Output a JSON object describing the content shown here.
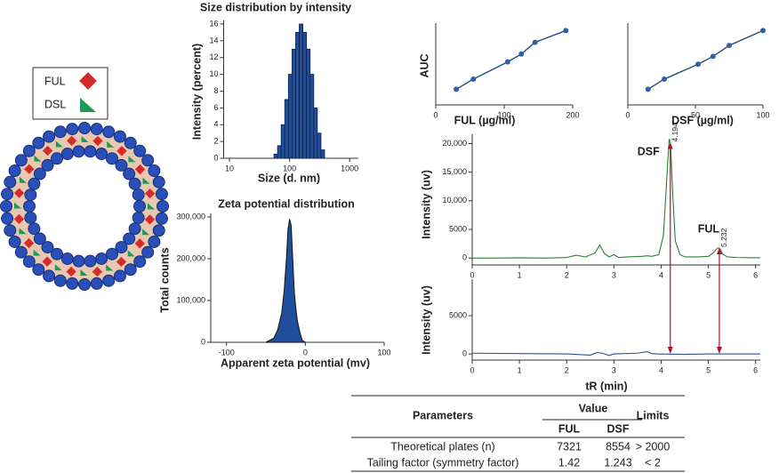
{
  "diagram": {
    "legend": [
      "FUL",
      "DSL"
    ]
  },
  "chart_data": [
    {
      "type": "histogram",
      "title": "Size distribution by intensity",
      "xlabel": "Size (d. nm)",
      "ylabel": "Intensity (percent)",
      "xscale": "log",
      "bins": [
        55,
        63.2,
        72.6,
        83.4,
        95.8,
        110,
        126.4,
        145.2,
        166.8,
        191.6,
        220,
        252.8,
        290.4,
        333.6,
        383.2
      ],
      "values": [
        0.5,
        1.5,
        4,
        7,
        10,
        13,
        15,
        16,
        15,
        13,
        10,
        6,
        3,
        1
      ],
      "color": "#1f4e9c",
      "xlim": [
        8,
        1400
      ],
      "xticks": [
        10,
        100,
        1000
      ],
      "ylim": [
        0,
        16
      ],
      "yticks": [
        0,
        2,
        4,
        6,
        8,
        10,
        12,
        14,
        16
      ]
    },
    {
      "type": "area",
      "title": "Zeta potential distribution",
      "xlabel": "Apparent zeta potential (mv)",
      "ylabel": "Total counts",
      "x": [
        -50,
        -40,
        -35,
        -30,
        -27,
        -24,
        -22,
        -20,
        -18,
        -16,
        -14,
        -12,
        -10,
        -7,
        -4,
        0
      ],
      "values": [
        0,
        10000,
        30000,
        70000,
        120000,
        200000,
        270000,
        295000,
        280000,
        200000,
        120000,
        80000,
        50000,
        25000,
        5000,
        0
      ],
      "color": "#1f4e9c",
      "xlim": [
        -120,
        100
      ],
      "xticks": [
        -100,
        0,
        100
      ],
      "ylim": [
        0,
        300000
      ],
      "yticks": [
        0,
        {
          "value": 100000,
          "label": "100,000"
        },
        {
          "value": 200000,
          "label": "200,000"
        },
        {
          "value": 300000,
          "label": "300,000"
        }
      ]
    },
    {
      "type": "line",
      "xlabel": "FUL (µg/ml)",
      "ylabel": "AUC",
      "markers": true,
      "x": [
        30,
        55,
        105,
        125,
        145,
        190
      ],
      "values": [
        20,
        33,
        55,
        65,
        80,
        95
      ],
      "color": "#2f5fa8",
      "xlim": [
        0,
        200
      ],
      "xticks": [
        0,
        100,
        200
      ],
      "ylim": [
        0,
        100
      ],
      "yticks": []
    },
    {
      "type": "line",
      "xlabel": "DSF (µg/ml)",
      "markers": true,
      "x": [
        15,
        27,
        52,
        63,
        75,
        100
      ],
      "values": [
        20,
        33,
        52,
        62,
        76,
        95
      ],
      "color": "#2f5fa8",
      "xlim": [
        0,
        100
      ],
      "xticks": [
        0,
        50,
        100
      ],
      "ylim": [
        0,
        100
      ],
      "yticks": []
    },
    {
      "type": "line",
      "ylabel": "Intensity (uv)",
      "peak_names": [
        "DSF",
        "FUL"
      ],
      "peak_labels": [
        4.194,
        5.232
      ],
      "x": [
        0,
        0.5,
        1,
        1.5,
        2,
        2.2,
        2.4,
        2.6,
        2.7,
        2.8,
        2.9,
        3.0,
        3.1,
        3.3,
        3.6,
        3.7,
        3.8,
        3.95,
        4.05,
        4.12,
        4.17,
        4.2,
        4.24,
        4.3,
        4.4,
        4.5,
        4.8,
        5.0,
        5.1,
        5.2,
        5.25,
        5.3,
        5.4,
        5.6,
        6.0,
        6.1
      ],
      "values": [
        0,
        0,
        50,
        0,
        100,
        500,
        200,
        900,
        2300,
        800,
        200,
        600,
        100,
        200,
        300,
        400,
        300,
        600,
        4000,
        14000,
        20800,
        20000,
        12000,
        3000,
        600,
        200,
        200,
        300,
        900,
        1800,
        1600,
        700,
        200,
        100,
        50,
        50
      ],
      "color": "#2e7d32",
      "xlim": [
        0,
        6.1
      ],
      "xticks": [
        0,
        1,
        2,
        3,
        4,
        5,
        6
      ],
      "ylim": [
        -1200,
        21000
      ],
      "yticks": [
        0,
        5000,
        {
          "value": 10000,
          "label": "10,000"
        },
        {
          "value": 15000,
          "label": "15,000"
        },
        {
          "value": 20000,
          "label": "20,000"
        }
      ]
    },
    {
      "type": "line",
      "ylabel": "Intensity (uv)",
      "xlabel": "tR (min)",
      "x": [
        0,
        1,
        2,
        2.5,
        2.65,
        2.75,
        2.9,
        3.0,
        3.5,
        3.7,
        3.8,
        3.9,
        4.5,
        5,
        6,
        6.1
      ],
      "values": [
        100,
        50,
        0,
        -150,
        200,
        100,
        -200,
        0,
        100,
        300,
        50,
        0,
        -50,
        0,
        0,
        0
      ],
      "color": "#2f4f8f",
      "xlim": [
        0,
        6.1
      ],
      "xticks": [
        0,
        1,
        2,
        3,
        4,
        5,
        6
      ],
      "ylim": [
        -800,
        9300
      ],
      "yticks": [
        0,
        5000
      ]
    }
  ],
  "table": {
    "headers": [
      "Parameters",
      "Value",
      "Limits"
    ],
    "subheaders": [
      "FUL",
      "DSF"
    ],
    "rows": [
      [
        "Theoretical plates (n)",
        7321,
        8554,
        "> 2000"
      ],
      [
        "Tailing factor (symmetry factor)",
        1.42,
        1.243,
        "< 2"
      ]
    ]
  }
}
